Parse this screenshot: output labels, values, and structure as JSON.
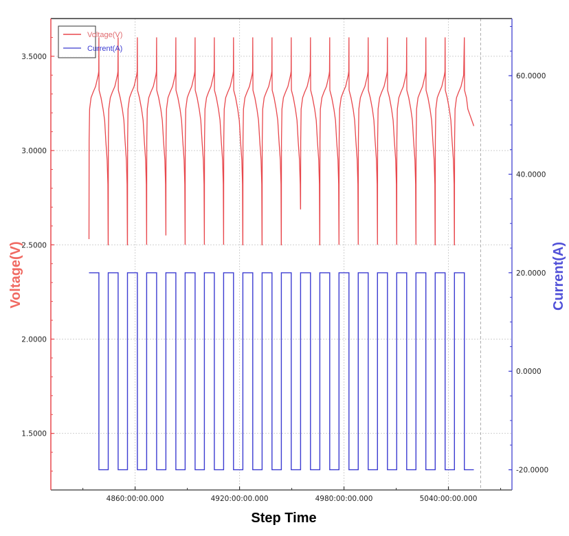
{
  "chart_data": {
    "type": "line",
    "title": "",
    "xlabel": "Step Time",
    "ylabel_left": "Voltage(V)",
    "ylabel_right": "Current(A)",
    "x_unit": "hours (hhhh:mm:ss.sss)",
    "x_ticks": [
      {
        "value": 4860,
        "label": "4860:00:00.000"
      },
      {
        "value": 4920,
        "label": "4920:00:00.000"
      },
      {
        "value": 4980,
        "label": "4980:00:00.000"
      },
      {
        "value": 5040,
        "label": "5040:00:00.000"
      }
    ],
    "xlim": [
      4811.6,
      5076.5
    ],
    "y_left": {
      "ticks": [
        {
          "value": 3.5,
          "label": "3.5000"
        },
        {
          "value": 3.0,
          "label": "3.0000"
        },
        {
          "value": 2.5,
          "label": "2.5000"
        },
        {
          "value": 2.0,
          "label": "2.0000"
        },
        {
          "value": 1.5,
          "label": "1.5000"
        }
      ],
      "ylim": [
        1.2,
        3.7
      ],
      "color": "#e8474c"
    },
    "y_right": {
      "ticks": [
        {
          "value": 60,
          "label": "60.0000"
        },
        {
          "value": 40,
          "label": "40.0000"
        },
        {
          "value": 20,
          "label": "20.0000"
        },
        {
          "value": 0,
          "label": "0.0000"
        },
        {
          "value": -20,
          "label": "-20.0000"
        }
      ],
      "ylim": [
        -24.1,
        71.6
      ],
      "color": "#3b3bd1"
    },
    "legend": {
      "position": "upper-left",
      "entries": [
        {
          "label": "Voltage(V)",
          "color": "#e8474c"
        },
        {
          "label": "Current(A)",
          "color": "#3b3bd1"
        }
      ]
    },
    "grid": true,
    "marker_line_x": 5058.5,
    "cycles": {
      "count": 20,
      "start_hours": 4833.5,
      "period_hours": 11.05,
      "charge_duration_hours": 5.7,
      "charge_current_A": 20,
      "discharge_current_A": -20,
      "last_end_hours": 5054.6
    },
    "series": [
      {
        "name": "Voltage(V)",
        "axis": "left",
        "description": "Per cycle: rises from ~2.5V to ~3.3V during charge, spikes to ~3.6V at end of charge, relaxes to ~3.32V, decays to ~3.15V then drops to ~2.5-2.8V at end of discharge",
        "cycle_profile": {
          "min_start": 2.53,
          "charge_plateau": 3.3,
          "charge_peak": 3.6,
          "post_peak": 3.32,
          "knee": 3.15,
          "discharge_end": 2.5
        },
        "end_of_discharge_minima": [
          2.5,
          2.5,
          2.5,
          2.55,
          2.5,
          2.5,
          2.5,
          2.5,
          2.5,
          2.5,
          2.69,
          2.5,
          2.5,
          2.5,
          2.5,
          2.5,
          2.5,
          2.5,
          2.5
        ],
        "final_value": 3.13
      },
      {
        "name": "Current(A)",
        "axis": "right",
        "description": "Square wave alternating between +20A (charge) and -20A (discharge)",
        "levels": [
          20,
          -20
        ]
      }
    ]
  },
  "legend": {
    "voltage_label": "Voltage(V)",
    "current_label": "Current(A)"
  },
  "axes": {
    "x_title": "Step Time",
    "left_title": "Voltage(V)",
    "right_title": "Current(A)"
  }
}
